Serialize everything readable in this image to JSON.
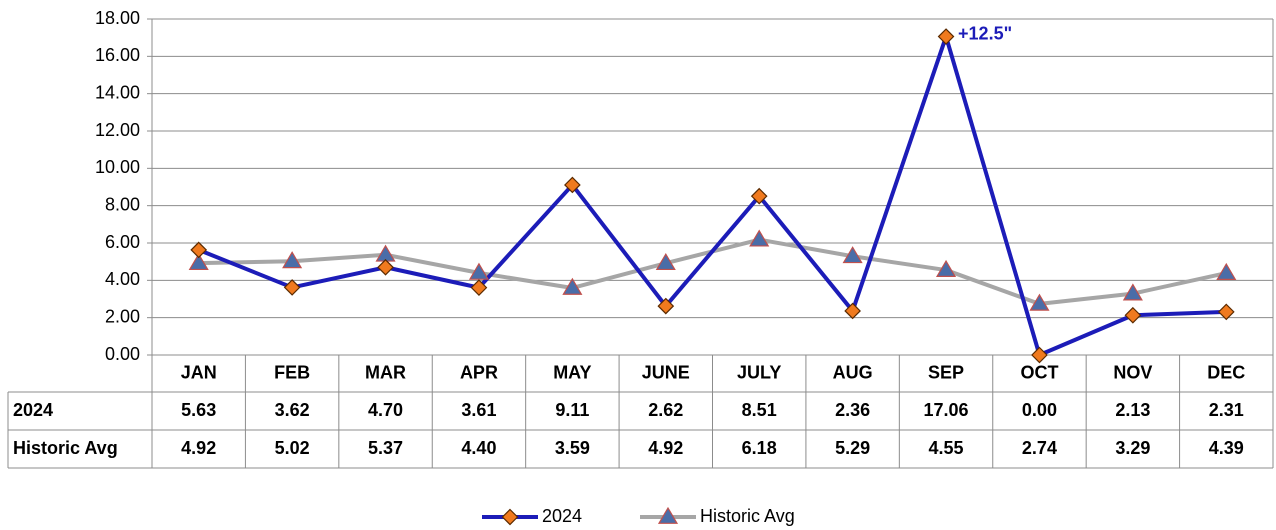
{
  "chart_data": {
    "type": "line",
    "categories": [
      "JAN",
      "FEB",
      "MAR",
      "APR",
      "MAY",
      "JUNE",
      "JULY",
      "AUG",
      "SEP",
      "OCT",
      "NOV",
      "DEC"
    ],
    "series": [
      {
        "name": "2024",
        "color": "#1c1cb8",
        "marker": "diamond",
        "marker_color": "#f07a1e",
        "values": [
          5.63,
          3.62,
          4.7,
          3.61,
          9.11,
          2.62,
          8.51,
          2.36,
          17.06,
          0,
          2.13,
          2.31
        ],
        "value_labels": [
          "5.63",
          "3.62",
          "4.70",
          "3.61",
          "9.11",
          "2.62",
          "8.51",
          "2.36",
          "17.06",
          "0.00",
          "2.13",
          "2.31"
        ]
      },
      {
        "name": "Historic Avg",
        "color": "#a6a6a6",
        "marker": "triangle",
        "marker_color": "#4a6da8",
        "values": [
          4.92,
          5.02,
          5.37,
          4.4,
          3.59,
          4.92,
          6.18,
          5.29,
          4.55,
          2.74,
          3.29,
          4.39
        ],
        "value_labels": [
          "4.92",
          "5.02",
          "5.37",
          "4.40",
          "3.59",
          "4.92",
          "6.18",
          "5.29",
          "4.55",
          "2.74",
          "3.29",
          "4.39"
        ]
      }
    ],
    "annotation": "+12.5\"",
    "ylim": [
      0,
      18
    ],
    "yticks": [
      {
        "value": 0,
        "label": "0.00"
      },
      {
        "value": 2,
        "label": "2.00"
      },
      {
        "value": 4,
        "label": "4.00"
      },
      {
        "value": 6,
        "label": "6.00"
      },
      {
        "value": 8,
        "label": "8.00"
      },
      {
        "value": 10,
        "label": "10.00"
      },
      {
        "value": 12,
        "label": "12.00"
      },
      {
        "value": 14,
        "label": "14.00"
      },
      {
        "value": 16,
        "label": "16.00"
      },
      {
        "value": 18,
        "label": "18.00"
      }
    ],
    "grid": true,
    "legend": "bottom",
    "data_table": true
  }
}
